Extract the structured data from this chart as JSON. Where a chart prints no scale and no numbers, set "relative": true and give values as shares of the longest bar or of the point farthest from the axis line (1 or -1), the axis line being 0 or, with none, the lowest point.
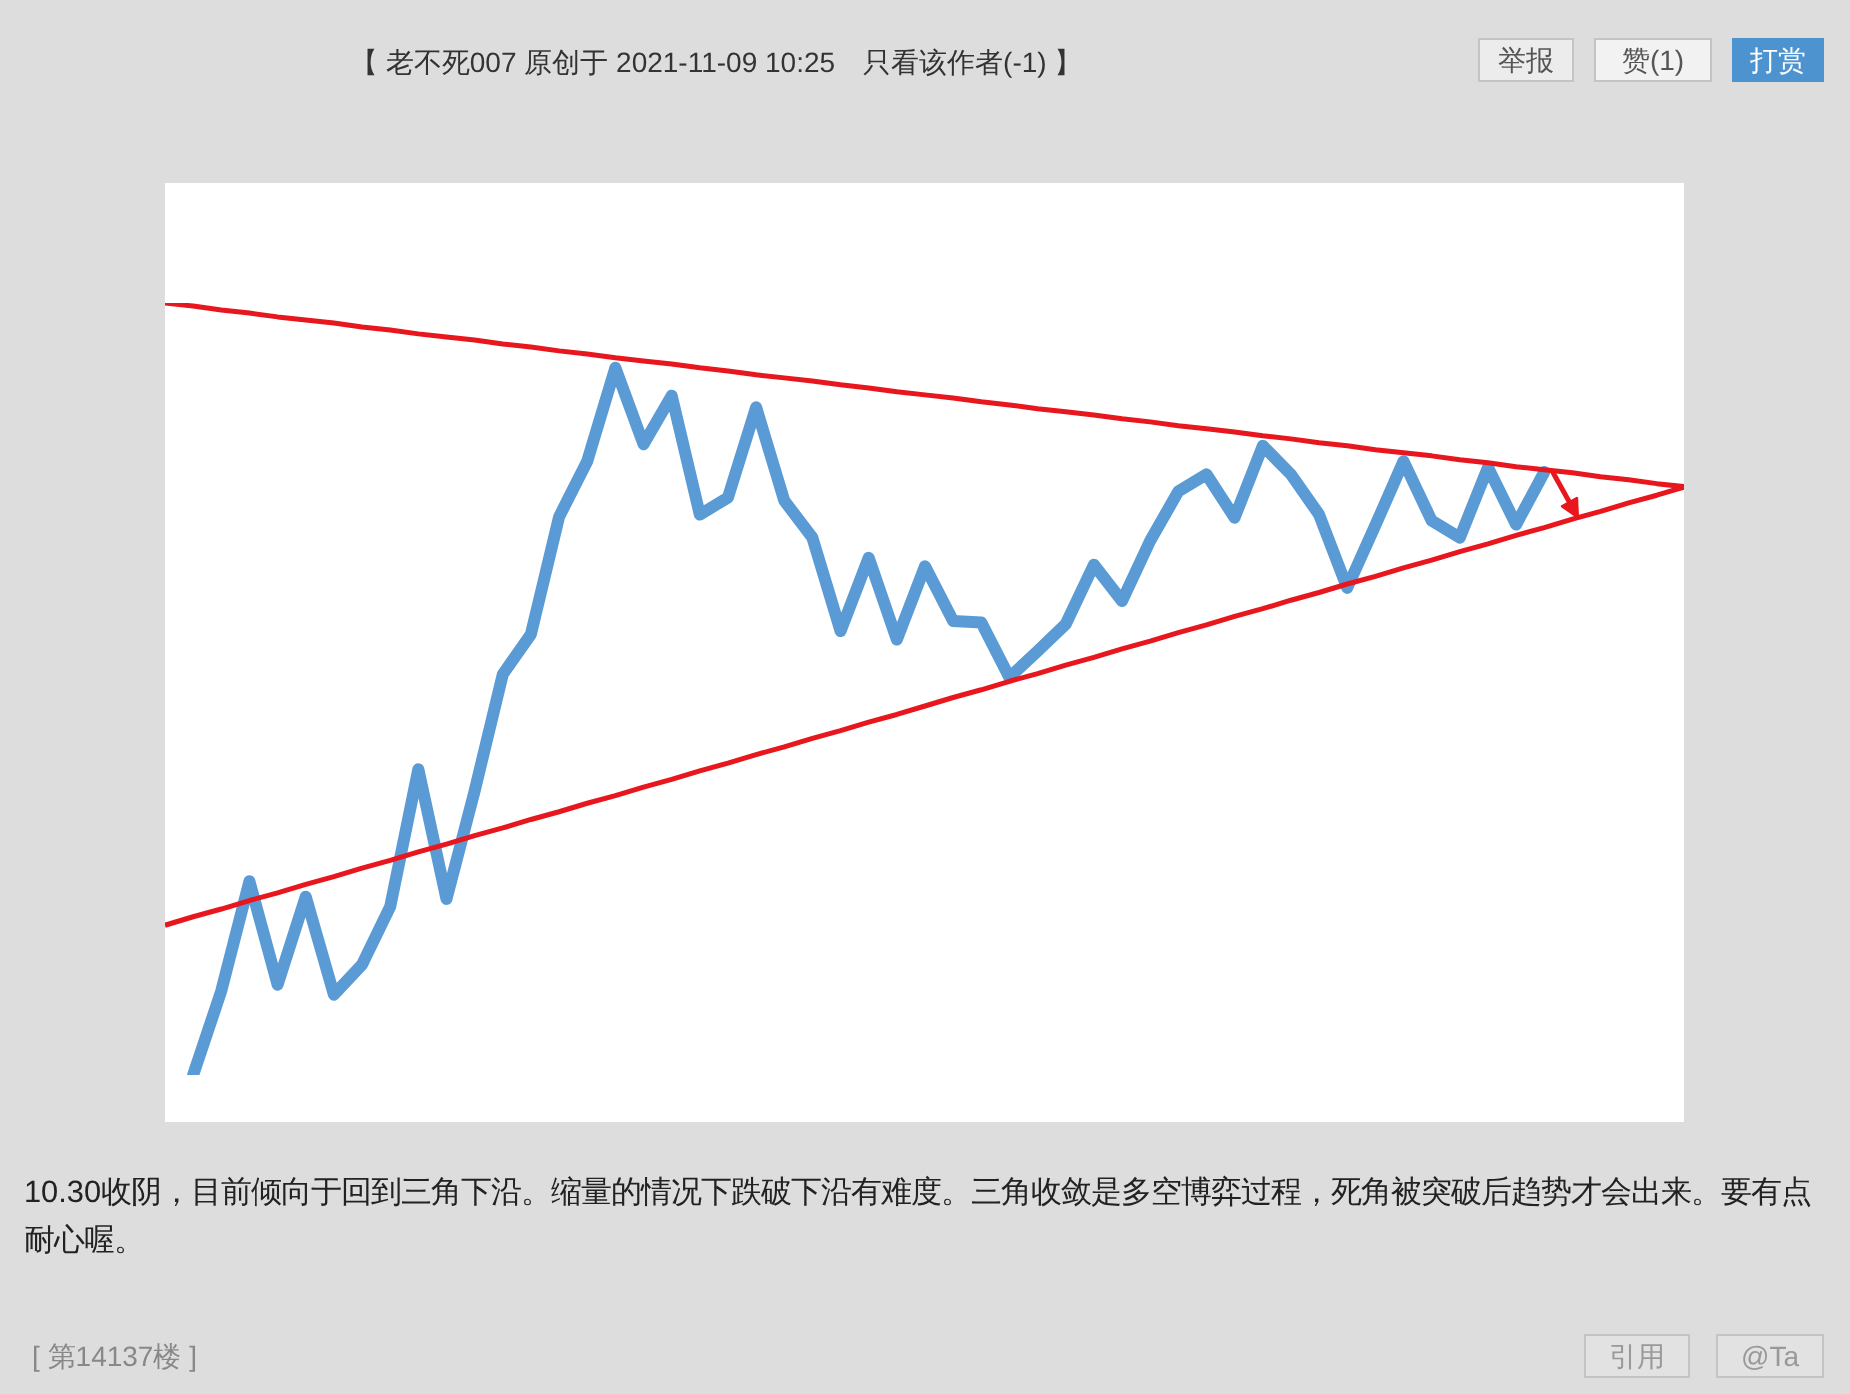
{
  "chart_data": {
    "type": "line",
    "relative": true,
    "tick_labels": false,
    "categories": [
      null,
      null,
      null,
      null,
      null,
      null,
      null,
      null,
      null,
      null,
      null,
      null,
      null,
      null,
      null,
      null,
      null,
      null,
      null,
      null,
      null,
      null,
      null,
      null,
      null,
      null,
      null,
      null,
      null,
      null,
      null,
      null,
      null,
      null,
      null,
      null,
      null,
      null,
      null,
      null,
      null,
      null,
      null,
      null,
      null,
      null,
      null,
      null,
      null,
      null,
      null,
      null,
      null,
      null,
      null
    ],
    "series": [
      {
        "color": "#5b9bd5",
        "values": [
          null,
          0,
          0.109,
          0.251,
          0.117,
          0.231,
          0.104,
          0.143,
          0.218,
          0.396,
          0.228,
          0.368,
          0.519,
          0.571,
          0.723,
          0.795,
          0.916,
          0.817,
          0.88,
          0.726,
          0.748,
          0.865,
          0.744,
          0.696,
          0.575,
          0.67,
          0.564,
          0.659,
          0.588,
          0.586,
          0.515,
          0.549,
          0.584,
          0.661,
          0.614,
          0.692,
          0.756,
          0.778,
          0.722,
          0.815,
          0.778,
          0.726,
          0.631,
          0.712,
          0.795,
          0.718,
          0.696,
          0.787,
          0.713,
          0.781,
          null,
          null,
          null,
          null,
          null
        ]
      },
      {
        "color": "#e8161d",
        "values": [
          1,
          0.996,
          0.991,
          0.987,
          0.982,
          0.978,
          0.974,
          0.969,
          0.965,
          0.96,
          0.956,
          0.952,
          0.947,
          0.943,
          0.938,
          0.934,
          0.929,
          0.925,
          0.921,
          0.916,
          0.912,
          0.907,
          0.903,
          0.899,
          0.894,
          0.89,
          0.885,
          0.881,
          0.877,
          0.872,
          0.868,
          0.863,
          0.859,
          0.855,
          0.85,
          0.846,
          0.841,
          0.837,
          0.833,
          0.828,
          0.824,
          0.819,
          0.815,
          0.81,
          0.806,
          0.802,
          0.797,
          0.793,
          0.788,
          0.784,
          0.78,
          0.775,
          0.771,
          0.766,
          0.762
        ]
      },
      {
        "color": "#e8161d",
        "values": [
          0.194,
          0.205,
          0.215,
          0.226,
          0.236,
          0.247,
          0.257,
          0.268,
          0.278,
          0.289,
          0.299,
          0.31,
          0.32,
          0.331,
          0.341,
          0.352,
          0.362,
          0.373,
          0.383,
          0.394,
          0.404,
          0.415,
          0.425,
          0.436,
          0.446,
          0.457,
          0.467,
          0.478,
          0.489,
          0.499,
          0.51,
          0.52,
          0.531,
          0.541,
          0.552,
          0.562,
          0.573,
          0.583,
          0.594,
          0.604,
          0.615,
          0.625,
          0.636,
          0.646,
          0.657,
          0.667,
          0.678,
          0.688,
          0.699,
          0.709,
          0.72,
          0.73,
          0.741,
          0.751,
          0.762
        ]
      }
    ],
    "annotations": [
      "【 老不死007 原创于 2021-11-09 10:25　只看该作者(-1) 】",
      "举报",
      "赞(1)",
      "打赏",
      "10.30收阴，目前倾向于回到三角下沿。缩量的情况下跌破下沿有难度。三角收敛是多空博弈过程，死角被突破后趋势才会出来。要有点耐心喔。",
      "[ 第14137楼 ]",
      "引用",
      "@Ta"
    ]
  }
}
